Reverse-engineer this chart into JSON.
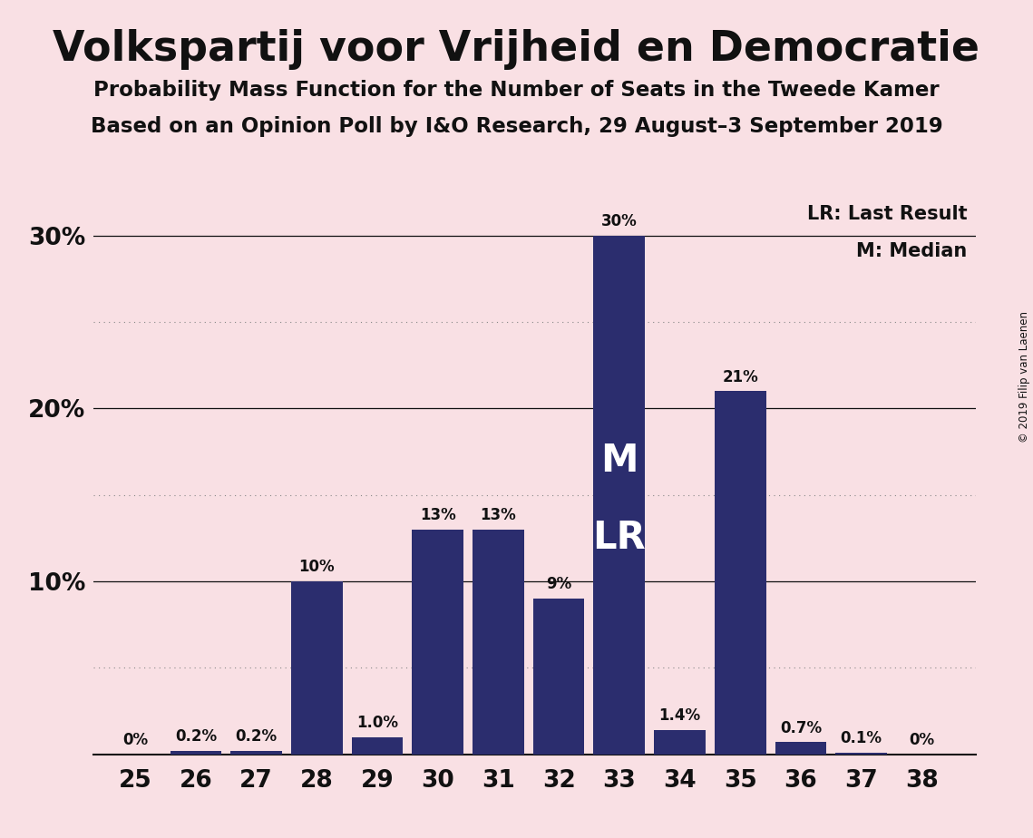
{
  "title": "Volkspartij voor Vrijheid en Democratie",
  "subtitle1": "Probability Mass Function for the Number of Seats in the Tweede Kamer",
  "subtitle2": "Based on an Opinion Poll by I&O Research, 29 August–3 September 2019",
  "copyright": "© 2019 Filip van Laenen",
  "seats": [
    25,
    26,
    27,
    28,
    29,
    30,
    31,
    32,
    33,
    34,
    35,
    36,
    37,
    38
  ],
  "probabilities": [
    0.0,
    0.2,
    0.2,
    10.0,
    1.0,
    13.0,
    13.0,
    9.0,
    30.0,
    1.4,
    21.0,
    0.7,
    0.1,
    0.0
  ],
  "labels": [
    "0%",
    "0.2%",
    "0.2%",
    "10%",
    "1.0%",
    "13%",
    "13%",
    "9%",
    "30%",
    "1.4%",
    "21%",
    "0.7%",
    "0.1%",
    "0%"
  ],
  "bar_color": "#2b2d6e",
  "background_color": "#f9e0e4",
  "median_seat": 33,
  "last_result_seat": 33,
  "legend_lr": "LR: Last Result",
  "legend_m": "M: Median",
  "ylim": [
    0,
    32
  ],
  "dotted_yticks": [
    5,
    15,
    25
  ],
  "solid_yticks": [
    10,
    20,
    30
  ],
  "label_yticks": [
    10,
    20,
    30
  ]
}
